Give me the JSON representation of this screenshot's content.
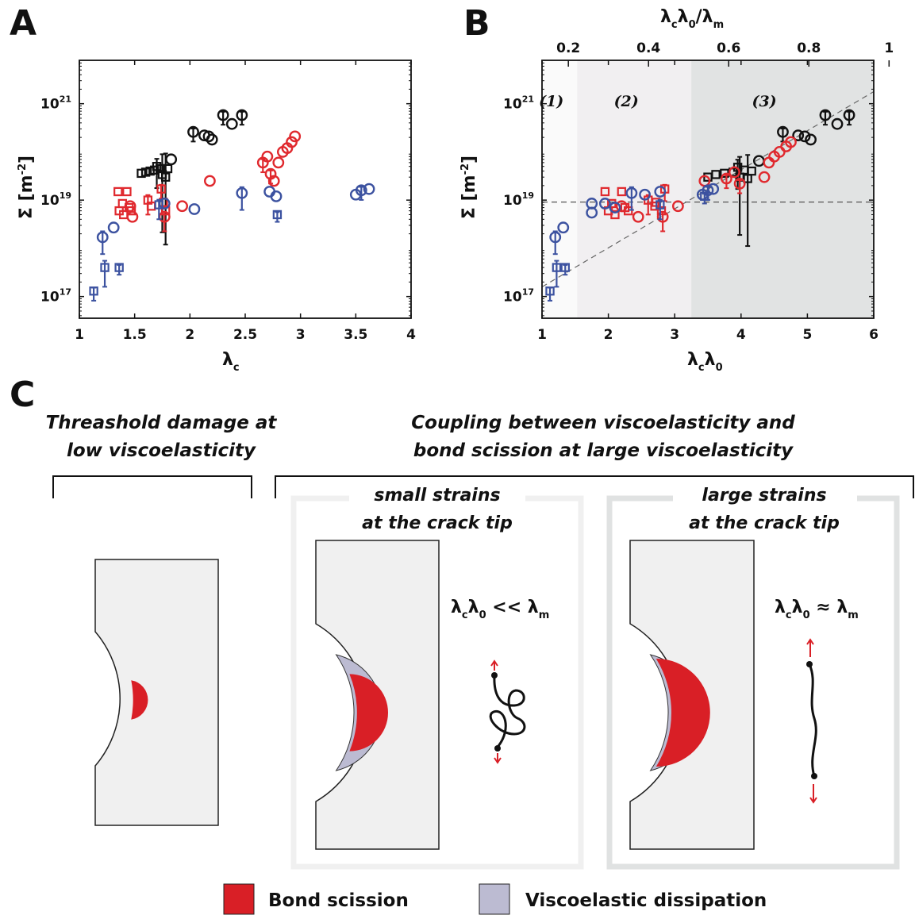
{
  "panels": {
    "a": "A",
    "b": "B",
    "c": "C"
  },
  "colors": {
    "black": "#111111",
    "red": "#e0292e",
    "blue": "#3c52a0",
    "bond_scission": "#d91f26",
    "viscoelastic": "#bcbbd2",
    "region1": "#fafafa",
    "region2": "#f1eff1",
    "region3": "#e1e3e3",
    "material": "#f0f0f0"
  },
  "chart_data": [
    {
      "id": "A",
      "type": "scatter",
      "xlabel_main": "λ",
      "xlabel_sub": "c",
      "ylabel_main": "Σ [m",
      "ylabel_sup": "-2",
      "ylabel_end": "]",
      "xlim": [
        1,
        4
      ],
      "ylim_log10": [
        16.55,
        21.9
      ],
      "xscale": "linear",
      "yscale": "log",
      "x_ticks": [
        {
          "v": 1,
          "label": "1"
        },
        {
          "v": 1.5,
          "label": "1.5"
        },
        {
          "v": 2,
          "label": "2"
        },
        {
          "v": 2.5,
          "label": "2.5"
        },
        {
          "v": 3,
          "label": "3"
        },
        {
          "v": 3.5,
          "label": "3.5"
        },
        {
          "v": 4,
          "label": "4"
        }
      ],
      "y_ticks": [
        {
          "v": 17,
          "base": "10",
          "exp": "17"
        },
        {
          "v": 19,
          "base": "10",
          "exp": "19"
        },
        {
          "v": 21,
          "base": "10",
          "exp": "21"
        }
      ],
      "grid": false,
      "series": [
        {
          "color": "black",
          "marker": "square",
          "points": [
            {
              "x": 1.56,
              "y": 3.6e+19
            },
            {
              "x": 1.6,
              "y": 3.8e+19
            },
            {
              "x": 1.64,
              "y": 4e+19
            },
            {
              "x": 1.68,
              "y": 4.2e+19
            },
            {
              "x": 1.7,
              "y": 5e+19,
              "e": 0.45
            },
            {
              "x": 1.73,
              "y": 4.5e+19
            },
            {
              "x": 1.75,
              "y": 3.4e+19,
              "e": 1.2
            },
            {
              "x": 1.78,
              "y": 3e+19,
              "e": 1.4
            },
            {
              "x": 1.8,
              "y": 4.5e+19
            }
          ]
        },
        {
          "color": "black",
          "marker": "circle",
          "points": [
            {
              "x": 1.83,
              "y": 7e+19
            },
            {
              "x": 2.03,
              "y": 2.6e+20,
              "e": 0.2
            },
            {
              "x": 2.13,
              "y": 2.2e+20
            },
            {
              "x": 2.17,
              "y": 2.1e+20
            },
            {
              "x": 2.2,
              "y": 1.8e+20
            },
            {
              "x": 2.3,
              "y": 5.8e+20,
              "e": 0.2
            },
            {
              "x": 2.38,
              "y": 3.8e+20
            },
            {
              "x": 2.47,
              "y": 5.8e+20,
              "e": 0.2
            }
          ]
        },
        {
          "color": "red",
          "marker": "square",
          "points": [
            {
              "x": 1.35,
              "y": 1.5e+19
            },
            {
              "x": 1.36,
              "y": 6e+18
            },
            {
              "x": 1.39,
              "y": 8.5e+18
            },
            {
              "x": 1.4,
              "y": 5e+18
            },
            {
              "x": 1.43,
              "y": 1.5e+19
            },
            {
              "x": 1.45,
              "y": 7e+18
            },
            {
              "x": 1.47,
              "y": 6e+18
            },
            {
              "x": 1.62,
              "y": 1e+19,
              "e": 0.3
            },
            {
              "x": 1.65,
              "y": 7.5e+18
            },
            {
              "x": 1.74,
              "y": 1.7e+19,
              "e": 0.25
            },
            {
              "x": 1.76,
              "y": 9e+18
            },
            {
              "x": 1.78,
              "y": 6e+18
            }
          ]
        },
        {
          "color": "red",
          "marker": "circle",
          "points": [
            {
              "x": 1.46,
              "y": 7.5e+18
            },
            {
              "x": 1.48,
              "y": 4.5e+18
            },
            {
              "x": 1.77,
              "y": 4.5e+18,
              "e": 0.3
            },
            {
              "x": 1.93,
              "y": 7.5e+18
            },
            {
              "x": 2.18,
              "y": 2.5e+19
            },
            {
              "x": 2.66,
              "y": 6e+19,
              "e": 0.2
            },
            {
              "x": 2.7,
              "y": 8e+19
            },
            {
              "x": 2.73,
              "y": 3.5e+19,
              "e": 0.2
            },
            {
              "x": 2.76,
              "y": 2.5e+19
            },
            {
              "x": 2.8,
              "y": 6e+19
            },
            {
              "x": 2.84,
              "y": 1e+20
            },
            {
              "x": 2.88,
              "y": 1.2e+20
            },
            {
              "x": 2.92,
              "y": 1.6e+20
            },
            {
              "x": 2.95,
              "y": 2.1e+20
            }
          ]
        },
        {
          "color": "blue",
          "marker": "square",
          "points": [
            {
              "x": 1.13,
              "y": 1.3e+17,
              "e": 0.2
            },
            {
              "x": 1.23,
              "y": 4e+17,
              "e": 0.4
            },
            {
              "x": 1.36,
              "y": 4e+17,
              "e": 0.15
            },
            {
              "x": 1.72,
              "y": 8e+18,
              "e": 0.3
            },
            {
              "x": 2.79,
              "y": 5e+18,
              "e": 0.15
            }
          ]
        },
        {
          "color": "blue",
          "marker": "circle",
          "points": [
            {
              "x": 1.21,
              "y": 1.7e+18,
              "e": 0.35
            },
            {
              "x": 1.31,
              "y": 2.7e+18
            },
            {
              "x": 1.77,
              "y": 8.5e+18
            },
            {
              "x": 2.04,
              "y": 6.5e+18
            },
            {
              "x": 2.47,
              "y": 1.4e+19,
              "e": 0.35
            },
            {
              "x": 2.72,
              "y": 1.5e+19
            },
            {
              "x": 2.78,
              "y": 1.2e+19
            },
            {
              "x": 3.5,
              "y": 1.3e+19
            },
            {
              "x": 3.55,
              "y": 1.6e+19,
              "e": 0.2
            },
            {
              "x": 3.62,
              "y": 1.7e+19
            }
          ]
        }
      ]
    },
    {
      "id": "B",
      "type": "scatter",
      "xlabel_main": "λ",
      "xlabel_sub1": "c",
      "xlabel_mid": "λ",
      "xlabel_sub2": "0",
      "top_label_parts": [
        "λ",
        "c",
        "λ",
        "0",
        "/λ",
        "m"
      ],
      "ylabel_main": "Σ [m",
      "ylabel_sup": "-2",
      "ylabel_end": "]",
      "xlim": [
        1,
        6
      ],
      "ylim_log10": [
        16.55,
        21.9
      ],
      "xscale": "linear",
      "yscale": "log",
      "x_ticks": [
        {
          "v": 1,
          "label": "1"
        },
        {
          "v": 2,
          "label": "2"
        },
        {
          "v": 3,
          "label": "3"
        },
        {
          "v": 4,
          "label": "4"
        },
        {
          "v": 5,
          "label": "5"
        },
        {
          "v": 6,
          "label": "6"
        }
      ],
      "top_ticks": [
        {
          "v": 0.2,
          "label": "0.2"
        },
        {
          "v": 0.4,
          "label": "0.4"
        },
        {
          "v": 0.6,
          "label": "0.6"
        },
        {
          "v": 0.8,
          "label": "0.8"
        },
        {
          "v": 1.0,
          "label": "1"
        }
      ],
      "top_axis_map": {
        "a": 0.1655,
        "b": -0.0312
      },
      "y_ticks": [
        {
          "v": 17,
          "base": "10",
          "exp": "17"
        },
        {
          "v": 19,
          "base": "10",
          "exp": "19"
        },
        {
          "v": 21,
          "base": "10",
          "exp": "21"
        }
      ],
      "regions": [
        {
          "x0": 1.0,
          "x1": 1.53,
          "color": "region1",
          "label": "(1)"
        },
        {
          "x0": 1.53,
          "x1": 3.25,
          "color": "region2",
          "label": "(2)"
        },
        {
          "x0": 3.25,
          "x1": 6.0,
          "color": "region3",
          "label": "(3)"
        }
      ],
      "hline_log10": 18.96,
      "trend_log10": {
        "x0": 1.0,
        "y0": 17.2,
        "x1": 6.0,
        "y1": 21.25
      },
      "series": [
        {
          "color": "black",
          "marker": "square",
          "points": [
            {
              "x": 3.5,
              "y": 3e+19
            },
            {
              "x": 3.62,
              "y": 3.4e+19
            },
            {
              "x": 3.75,
              "y": 3.6e+19
            },
            {
              "x": 3.88,
              "y": 3.8e+19
            },
            {
              "x": 3.95,
              "y": 4.8e+19,
              "e": 0.45
            },
            {
              "x": 4.05,
              "y": 4.2e+19
            },
            {
              "x": 3.98,
              "y": 3e+19,
              "e": 1.2
            },
            {
              "x": 4.1,
              "y": 2.8e+19,
              "e": 1.4
            },
            {
              "x": 4.16,
              "y": 4e+19
            }
          ]
        },
        {
          "color": "black",
          "marker": "circle",
          "points": [
            {
              "x": 4.27,
              "y": 6.5e+19
            },
            {
              "x": 4.63,
              "y": 2.6e+20,
              "e": 0.2
            },
            {
              "x": 4.86,
              "y": 2.2e+20
            },
            {
              "x": 4.96,
              "y": 2.1e+20
            },
            {
              "x": 5.05,
              "y": 1.8e+20
            },
            {
              "x": 5.27,
              "y": 5.8e+20,
              "e": 0.2
            },
            {
              "x": 5.45,
              "y": 3.8e+20
            },
            {
              "x": 5.63,
              "y": 5.8e+20,
              "e": 0.2
            }
          ]
        },
        {
          "color": "red",
          "marker": "square",
          "points": [
            {
              "x": 1.95,
              "y": 1.5e+19
            },
            {
              "x": 2.0,
              "y": 6e+18
            },
            {
              "x": 2.05,
              "y": 8.5e+18
            },
            {
              "x": 2.1,
              "y": 5e+18
            },
            {
              "x": 2.2,
              "y": 1.5e+19
            },
            {
              "x": 2.25,
              "y": 7e+18
            },
            {
              "x": 2.3,
              "y": 6e+18
            },
            {
              "x": 2.6,
              "y": 1e+19,
              "e": 0.3
            },
            {
              "x": 2.7,
              "y": 7.5e+18
            },
            {
              "x": 2.85,
              "y": 1.7e+19,
              "e": 0.25
            },
            {
              "x": 2.72,
              "y": 9e+18
            },
            {
              "x": 2.8,
              "y": 6e+18
            }
          ]
        },
        {
          "color": "red",
          "marker": "circle",
          "points": [
            {
              "x": 2.2,
              "y": 7.5e+18
            },
            {
              "x": 2.45,
              "y": 4.5e+18
            },
            {
              "x": 2.82,
              "y": 4.5e+18,
              "e": 0.3
            },
            {
              "x": 3.05,
              "y": 7.5e+18
            },
            {
              "x": 3.45,
              "y": 2.5e+19
            },
            {
              "x": 3.78,
              "y": 2.8e+19,
              "e": 0.2
            },
            {
              "x": 3.9,
              "y": 3.8e+19
            },
            {
              "x": 3.98,
              "y": 2.2e+19,
              "e": 0.2
            },
            {
              "x": 4.35,
              "y": 3e+19
            },
            {
              "x": 4.42,
              "y": 6e+19
            },
            {
              "x": 4.5,
              "y": 8e+19
            },
            {
              "x": 4.58,
              "y": 1e+20
            },
            {
              "x": 4.68,
              "y": 1.3e+20
            },
            {
              "x": 4.75,
              "y": 1.6e+20
            }
          ]
        },
        {
          "color": "blue",
          "marker": "square",
          "points": [
            {
              "x": 1.12,
              "y": 1.3e+17,
              "e": 0.2
            },
            {
              "x": 1.22,
              "y": 4e+17,
              "e": 0.4
            },
            {
              "x": 1.35,
              "y": 4e+17,
              "e": 0.15
            },
            {
              "x": 2.78,
              "y": 8e+18,
              "e": 0.3
            },
            {
              "x": 3.45,
              "y": 1.2e+19,
              "e": 0.15
            }
          ]
        },
        {
          "color": "blue",
          "marker": "circle",
          "points": [
            {
              "x": 1.2,
              "y": 1.7e+18,
              "e": 0.35
            },
            {
              "x": 1.32,
              "y": 2.7e+18
            },
            {
              "x": 1.75,
              "y": 8.5e+18
            },
            {
              "x": 1.75,
              "y": 5.5e+18
            },
            {
              "x": 1.95,
              "y": 8.5e+18
            },
            {
              "x": 2.1,
              "y": 7e+18
            },
            {
              "x": 2.35,
              "y": 1.4e+19,
              "e": 0.35
            },
            {
              "x": 2.55,
              "y": 1.3e+19
            },
            {
              "x": 2.78,
              "y": 1.5e+19
            },
            {
              "x": 3.42,
              "y": 1.3e+19
            },
            {
              "x": 3.5,
              "y": 1.6e+19,
              "e": 0.2
            },
            {
              "x": 3.58,
              "y": 1.7e+19
            }
          ]
        }
      ]
    }
  ],
  "schematic": {
    "left_heading_line1": "Threashold damage at",
    "left_heading_line2": "low viscoelasticity",
    "right_heading_line1": "Coupling between viscoelasticity and",
    "right_heading_line2": "bond scission at large viscoelasticity",
    "box1_title_line1": "small strains",
    "box1_title_line2": "at the crack tip",
    "box2_title_line1": "large strains",
    "box2_title_line2": "at the crack tip",
    "rel1": {
      "a": "λ",
      "s1": "c",
      "b": "λ",
      "s2": "0",
      "op": " << ",
      "c": "λ",
      "s3": "m"
    },
    "rel2": {
      "a": "λ",
      "s1": "c",
      "b": "λ",
      "s2": "0",
      "op": " ≈ ",
      "c": "λ",
      "s3": "m"
    }
  },
  "legend": {
    "bond_scission": "Bond scission",
    "viscoelastic": "Viscoelastic dissipation"
  }
}
